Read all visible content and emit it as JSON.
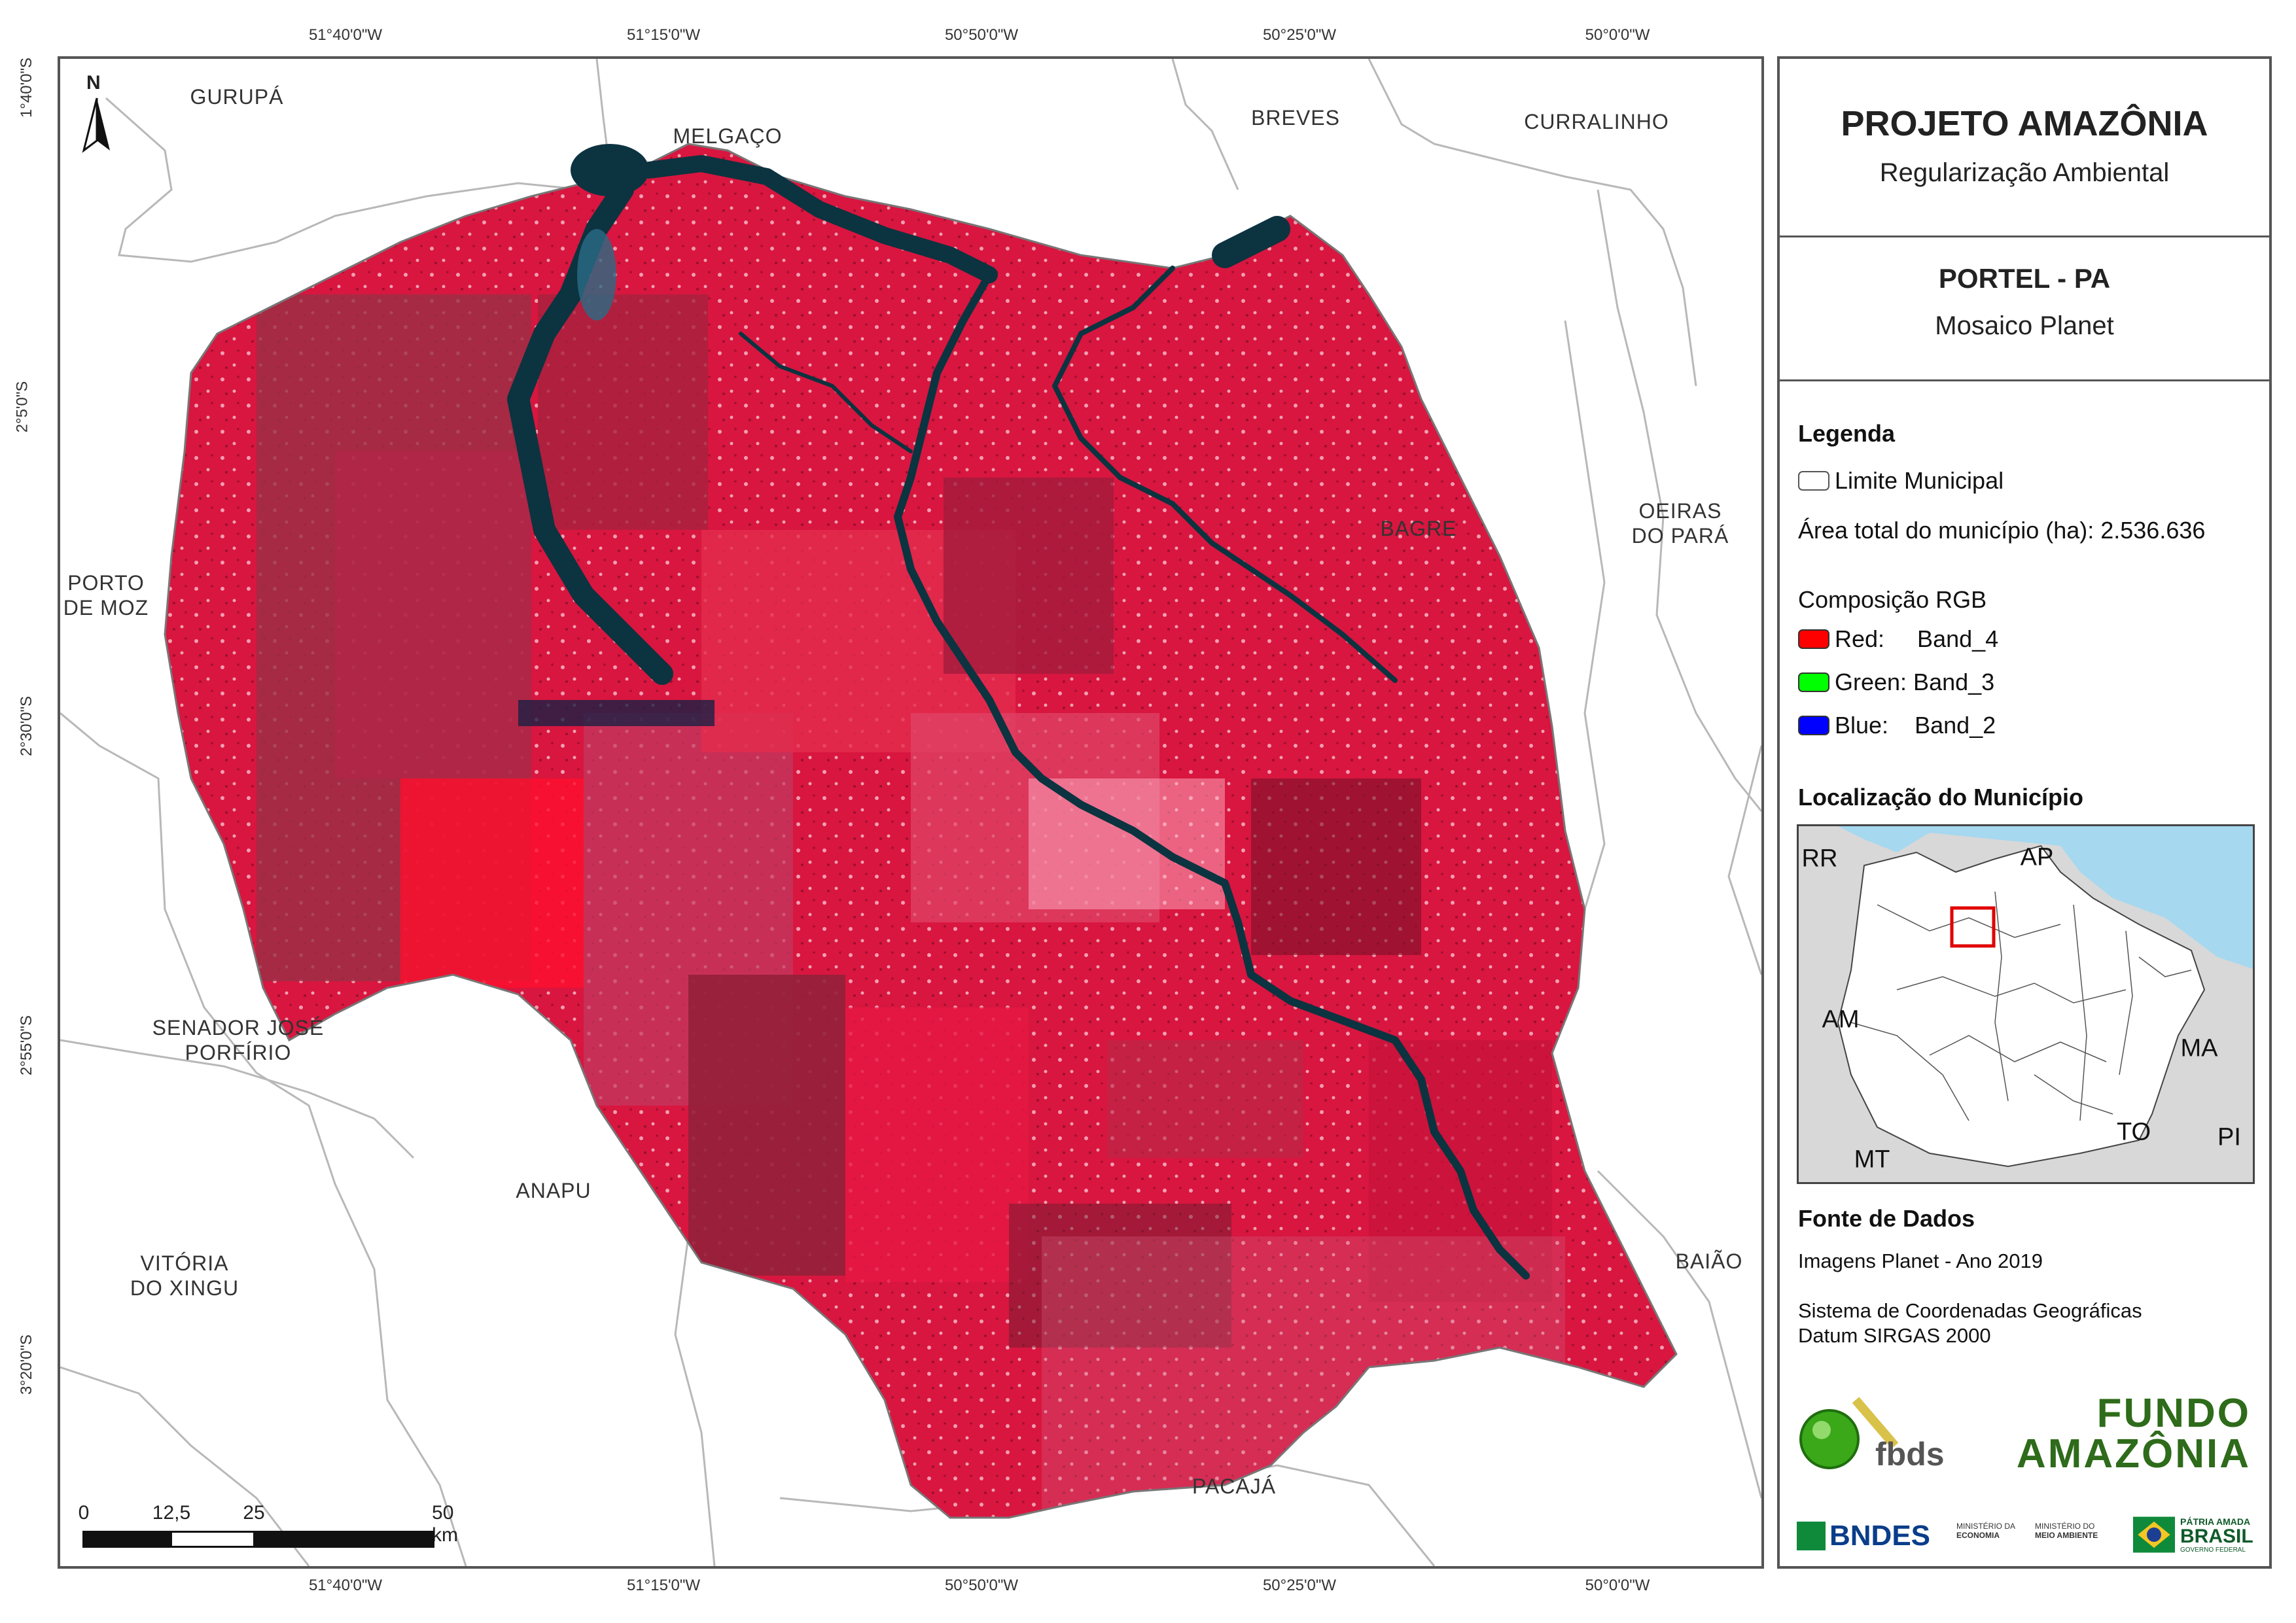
{
  "coords": {
    "top": [
      "51°40'0\"W",
      "51°15'0\"W",
      "50°50'0\"W",
      "50°25'0\"W",
      "50°0'0\"W"
    ],
    "bottom": [
      "51°40'0\"W",
      "51°15'0\"W",
      "50°50'0\"W",
      "50°25'0\"W",
      "50°0'0\"W"
    ],
    "left": [
      "1°40'0\"S",
      "2°5'0\"S",
      "2°30'0\"S",
      "2°55'0\"S",
      "3°20'0\"S"
    ]
  },
  "municipalities": {
    "gurupa": "GURUPÁ",
    "melgaco": "MELGAÇO",
    "breves": "BREVES",
    "curralinho": "CURRALINHO",
    "oeiras_1": "OEIRAS",
    "oeiras_2": "DO PARÁ",
    "bagre": "BAGRE",
    "porto_moz_1": "PORTO",
    "porto_moz_2": "DE MOZ",
    "senador_1": "SENADOR JOSÉ",
    "senador_2": "PORFÍRIO",
    "anapu": "ANAPU",
    "vitoria_1": "VITÓRIA",
    "vitoria_2": "DO XINGU",
    "baiao": "BAIÃO",
    "pacaja": "PACAJÁ"
  },
  "north_arrow": "N",
  "scale_bar": {
    "labels": [
      "0",
      "12,5",
      "25",
      "50 km"
    ]
  },
  "panel": {
    "title": "PROJETO AMAZÔNIA",
    "subtitle": "Regularização Ambiental",
    "municipality": "PORTEL - PA",
    "map_type": "Mosaico Planet",
    "legend_head": "Legenda",
    "legend_limit": "Limite Municipal",
    "area_label": "Área total do município (ha): 2.536.636",
    "rgb_head": "Composição RGB",
    "rgb_red": "Red:     Band_4",
    "rgb_green": "Green: Band_3",
    "rgb_blue": "Blue:    Band_2",
    "location_head": "Localização do Município",
    "location_states": {
      "rr": "RR",
      "ap": "AP",
      "am": "AM",
      "ma": "MA",
      "to": "TO",
      "pi": "PI",
      "mt": "MT"
    },
    "sources_head": "Fonte de Dados",
    "sources_line": "Imagens Planet - Ano 2019",
    "crs_line1": "Sistema de Coordenadas Geográficas",
    "crs_line2": "Datum SIRGAS 2000",
    "logos": {
      "fbds": "fbds",
      "fundo_1": "FUNDO",
      "fundo_2": "AMAZÔNIA",
      "bndes": "BNDES",
      "min_eco_1": "MINISTÉRIO DA",
      "min_eco_2": "ECONOMIA",
      "min_meio_1": "MINISTÉRIO DO",
      "min_meio_2": "MEIO AMBIENTE",
      "brasil_1": "PÁTRIA AMADA",
      "brasil_2": "BRASIL",
      "brasil_3": "GOVERNO FEDERAL"
    }
  },
  "colors": {
    "rgb_red": "#ff0000",
    "rgb_green": "#00ff00",
    "rgb_blue": "#0000ff",
    "image_red": "#d8163f",
    "water": "#0c3340",
    "ocean": "#a6d8ef",
    "highlight": "#e00000"
  }
}
